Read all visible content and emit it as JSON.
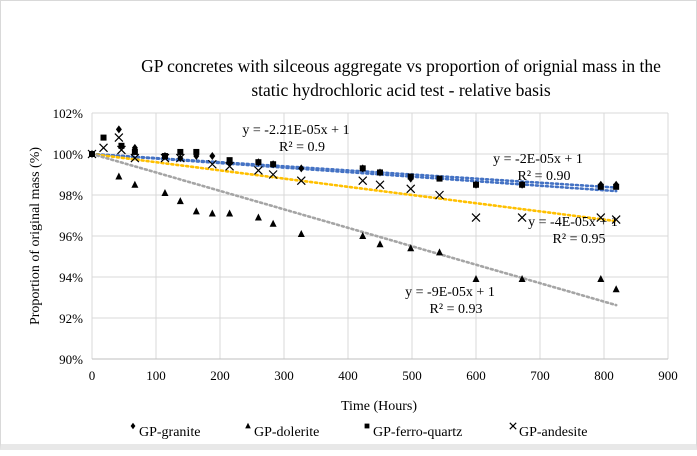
{
  "chart_data": {
    "type": "scatter",
    "title": "GP concretes with silceous aggregate vs proportion of orignial mass in the static hydrochloric acid test - relative basis",
    "title_lines": [
      "GP concretes with silceous aggregate vs proportion of orignial mass in the",
      "static hydrochloric acid test - relative basis"
    ],
    "xlabel": "Time (Hours)",
    "ylabel": "Proportion of original mass (%)",
    "xlim": [
      0,
      900
    ],
    "ylim": [
      90,
      102
    ],
    "xticks": [
      "0",
      "100",
      "200",
      "300",
      "400",
      "500",
      "600",
      "700",
      "800",
      "900"
    ],
    "yticks": [
      "90%",
      "92%",
      "94%",
      "96%",
      "98%",
      "100%",
      "102%"
    ],
    "grid": true,
    "legend_position": "bottom",
    "series": [
      {
        "name": "GP-granite",
        "marker": "diamond",
        "x": [
          0,
          42,
          67,
          114,
          138,
          163,
          188,
          215,
          260,
          283,
          327,
          423,
          450,
          498,
          600,
          672,
          795,
          819
        ],
        "y": [
          100,
          101.2,
          100.3,
          99.9,
          99.8,
          99.9,
          99.9,
          99.6,
          99.6,
          99.5,
          99.3,
          99.3,
          99.1,
          98.8,
          98.5,
          98.5,
          98.5,
          98.5
        ]
      },
      {
        "name": "GP-dolerite",
        "marker": "triangle",
        "x": [
          0,
          42,
          67,
          114,
          138,
          163,
          188,
          215,
          260,
          283,
          327,
          423,
          450,
          498,
          543,
          600,
          672,
          795,
          819
        ],
        "y": [
          100,
          98.9,
          98.5,
          98.1,
          97.7,
          97.2,
          97.1,
          97.1,
          96.9,
          96.6,
          96.1,
          96.0,
          95.6,
          95.4,
          95.2,
          93.9,
          93.9,
          93.9,
          93.4
        ]
      },
      {
        "name": "GP-ferro-quartz",
        "marker": "square",
        "x": [
          0,
          18,
          46,
          67,
          114,
          138,
          163,
          215,
          260,
          283,
          423,
          450,
          498,
          543,
          600,
          672,
          795,
          819
        ],
        "y": [
          100,
          100.8,
          100.4,
          100.1,
          99.9,
          100.1,
          100.1,
          99.7,
          99.6,
          99.5,
          99.3,
          99.1,
          98.9,
          98.8,
          98.5,
          98.5,
          98.4,
          98.4
        ]
      },
      {
        "name": "GP-andesite",
        "marker": "x",
        "x": [
          0,
          18,
          42,
          46,
          67,
          114,
          138,
          188,
          215,
          260,
          283,
          327,
          423,
          450,
          498,
          543,
          600,
          672,
          795,
          819
        ],
        "y": [
          100,
          100.3,
          100.8,
          100.2,
          99.8,
          99.8,
          99.8,
          99.5,
          99.4,
          99.2,
          99.0,
          98.7,
          98.7,
          98.5,
          98.3,
          98.0,
          96.9,
          96.9,
          96.9,
          96.8
        ]
      }
    ],
    "trendlines": [
      {
        "equation": "y = -2.21E-05x + 1",
        "r2": "R² = 0.9",
        "slope_pct_per_hr": -0.00221,
        "color": "#4472c4",
        "end_x": 819
      },
      {
        "equation": "y = -2E-05x + 1",
        "r2": "R² = 0.90",
        "slope_pct_per_hr": -0.002,
        "color": "#4472c4",
        "end_x": 819
      },
      {
        "equation": "y = -4E-05x + 1",
        "r2": "R² = 0.95",
        "slope_pct_per_hr": -0.004,
        "color": "#ffc000",
        "end_x": 819
      },
      {
        "equation": "y = -9E-05x + 1",
        "r2": "R² = 0.93",
        "slope_pct_per_hr": -0.009,
        "color": "#a5a5a5",
        "end_x": 819
      }
    ]
  }
}
